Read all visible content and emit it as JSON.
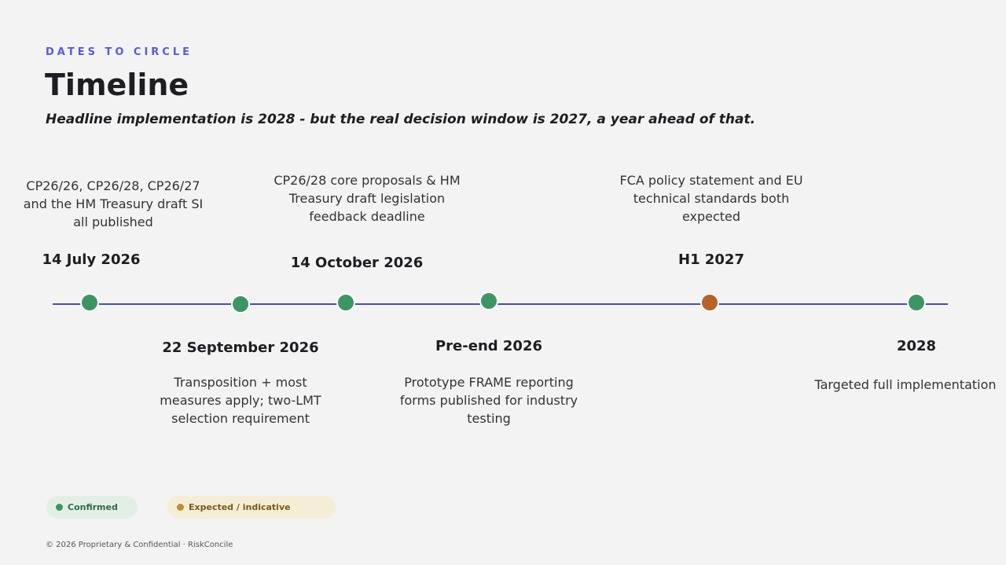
{
  "header": {
    "eyebrow": "DATES TO CIRCLE",
    "title": "Timeline",
    "subtitle": "Headline implementation is 2028 - but the real decision window is 2027, a year ahead of that."
  },
  "events": [
    {
      "date": "14 July 2026",
      "description": "CP26/26, CP26/28, CP26/27 and the HM Treasury draft SI all published",
      "color": "#3f9464"
    },
    {
      "date": "22 September 2026",
      "description": "Transposition + most measures apply; two-LMT selection requirement",
      "color": "#3f9464"
    },
    {
      "date": "14 October 2026",
      "description": "CP26/28 core proposals & HM Treasury draft legislation feedback deadline",
      "color": "#3f9464"
    },
    {
      "date": "Pre-end 2026",
      "description": "Prototype FRAME reporting forms published for industry testing",
      "color": "#3f9464"
    },
    {
      "date": "H1 2027",
      "description": "FCA policy statement and EU technical standards both expected",
      "color": "#b5622c"
    },
    {
      "date": "2028",
      "description": "Targeted full implementation",
      "color": "#3f9464"
    }
  ],
  "legend": [
    {
      "label": "Confirmed",
      "color": "#3f9464"
    },
    {
      "label": "Expected / indicative",
      "color": "#c08a3a"
    }
  ],
  "footer": "© 2026 Proprietary & Confidential · RiskConcile"
}
